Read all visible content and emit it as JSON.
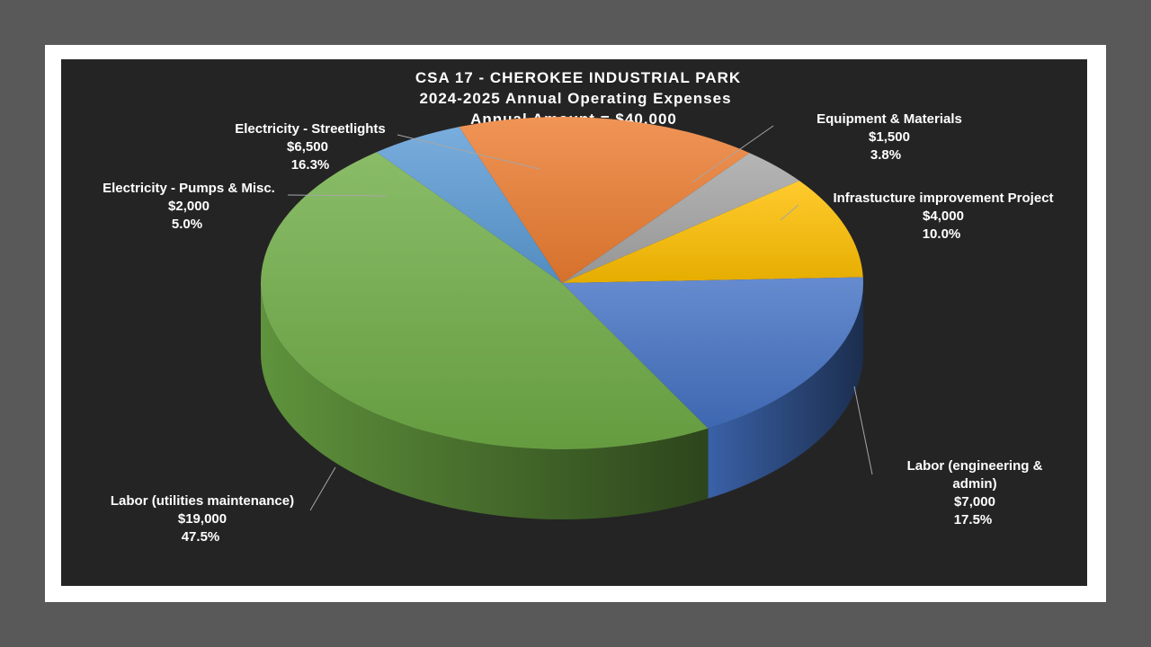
{
  "chart_data": {
    "type": "pie",
    "style": "3d",
    "title": [
      "CSA 17 - CHEROKEE INDUSTRIAL PARK",
      "2024-2025 Annual Operating Expenses",
      "Annual Amount = $40,000"
    ],
    "slices": [
      {
        "name": "Electricity - Streetlights",
        "value_label": "$6,500",
        "value": 6500,
        "percent_label": "16.3%",
        "color": "#ED7D31"
      },
      {
        "name": "Equipment & Materials",
        "value_label": "$1,500",
        "value": 1500,
        "percent_label": "3.8%",
        "color": "#A5A5A5"
      },
      {
        "name": "Infrastucture improvement Project",
        "value_label": "$4,000",
        "value": 4000,
        "percent_label": "10.0%",
        "color": "#FFC000"
      },
      {
        "name": "Labor (engineering & admin)",
        "value_label": "$7,000",
        "value": 7000,
        "percent_label": "17.5%",
        "color": "#4472C4"
      },
      {
        "name": "Labor (utilities maintenance)",
        "value_label": "$19,000",
        "value": 19000,
        "percent_label": "47.5%",
        "color": "#70AD47"
      },
      {
        "name": "Electricity - Pumps & Misc.",
        "value_label": "$2,000",
        "value": 2000,
        "percent_label": "5.0%",
        "color": "#5B9BD5"
      }
    ]
  }
}
